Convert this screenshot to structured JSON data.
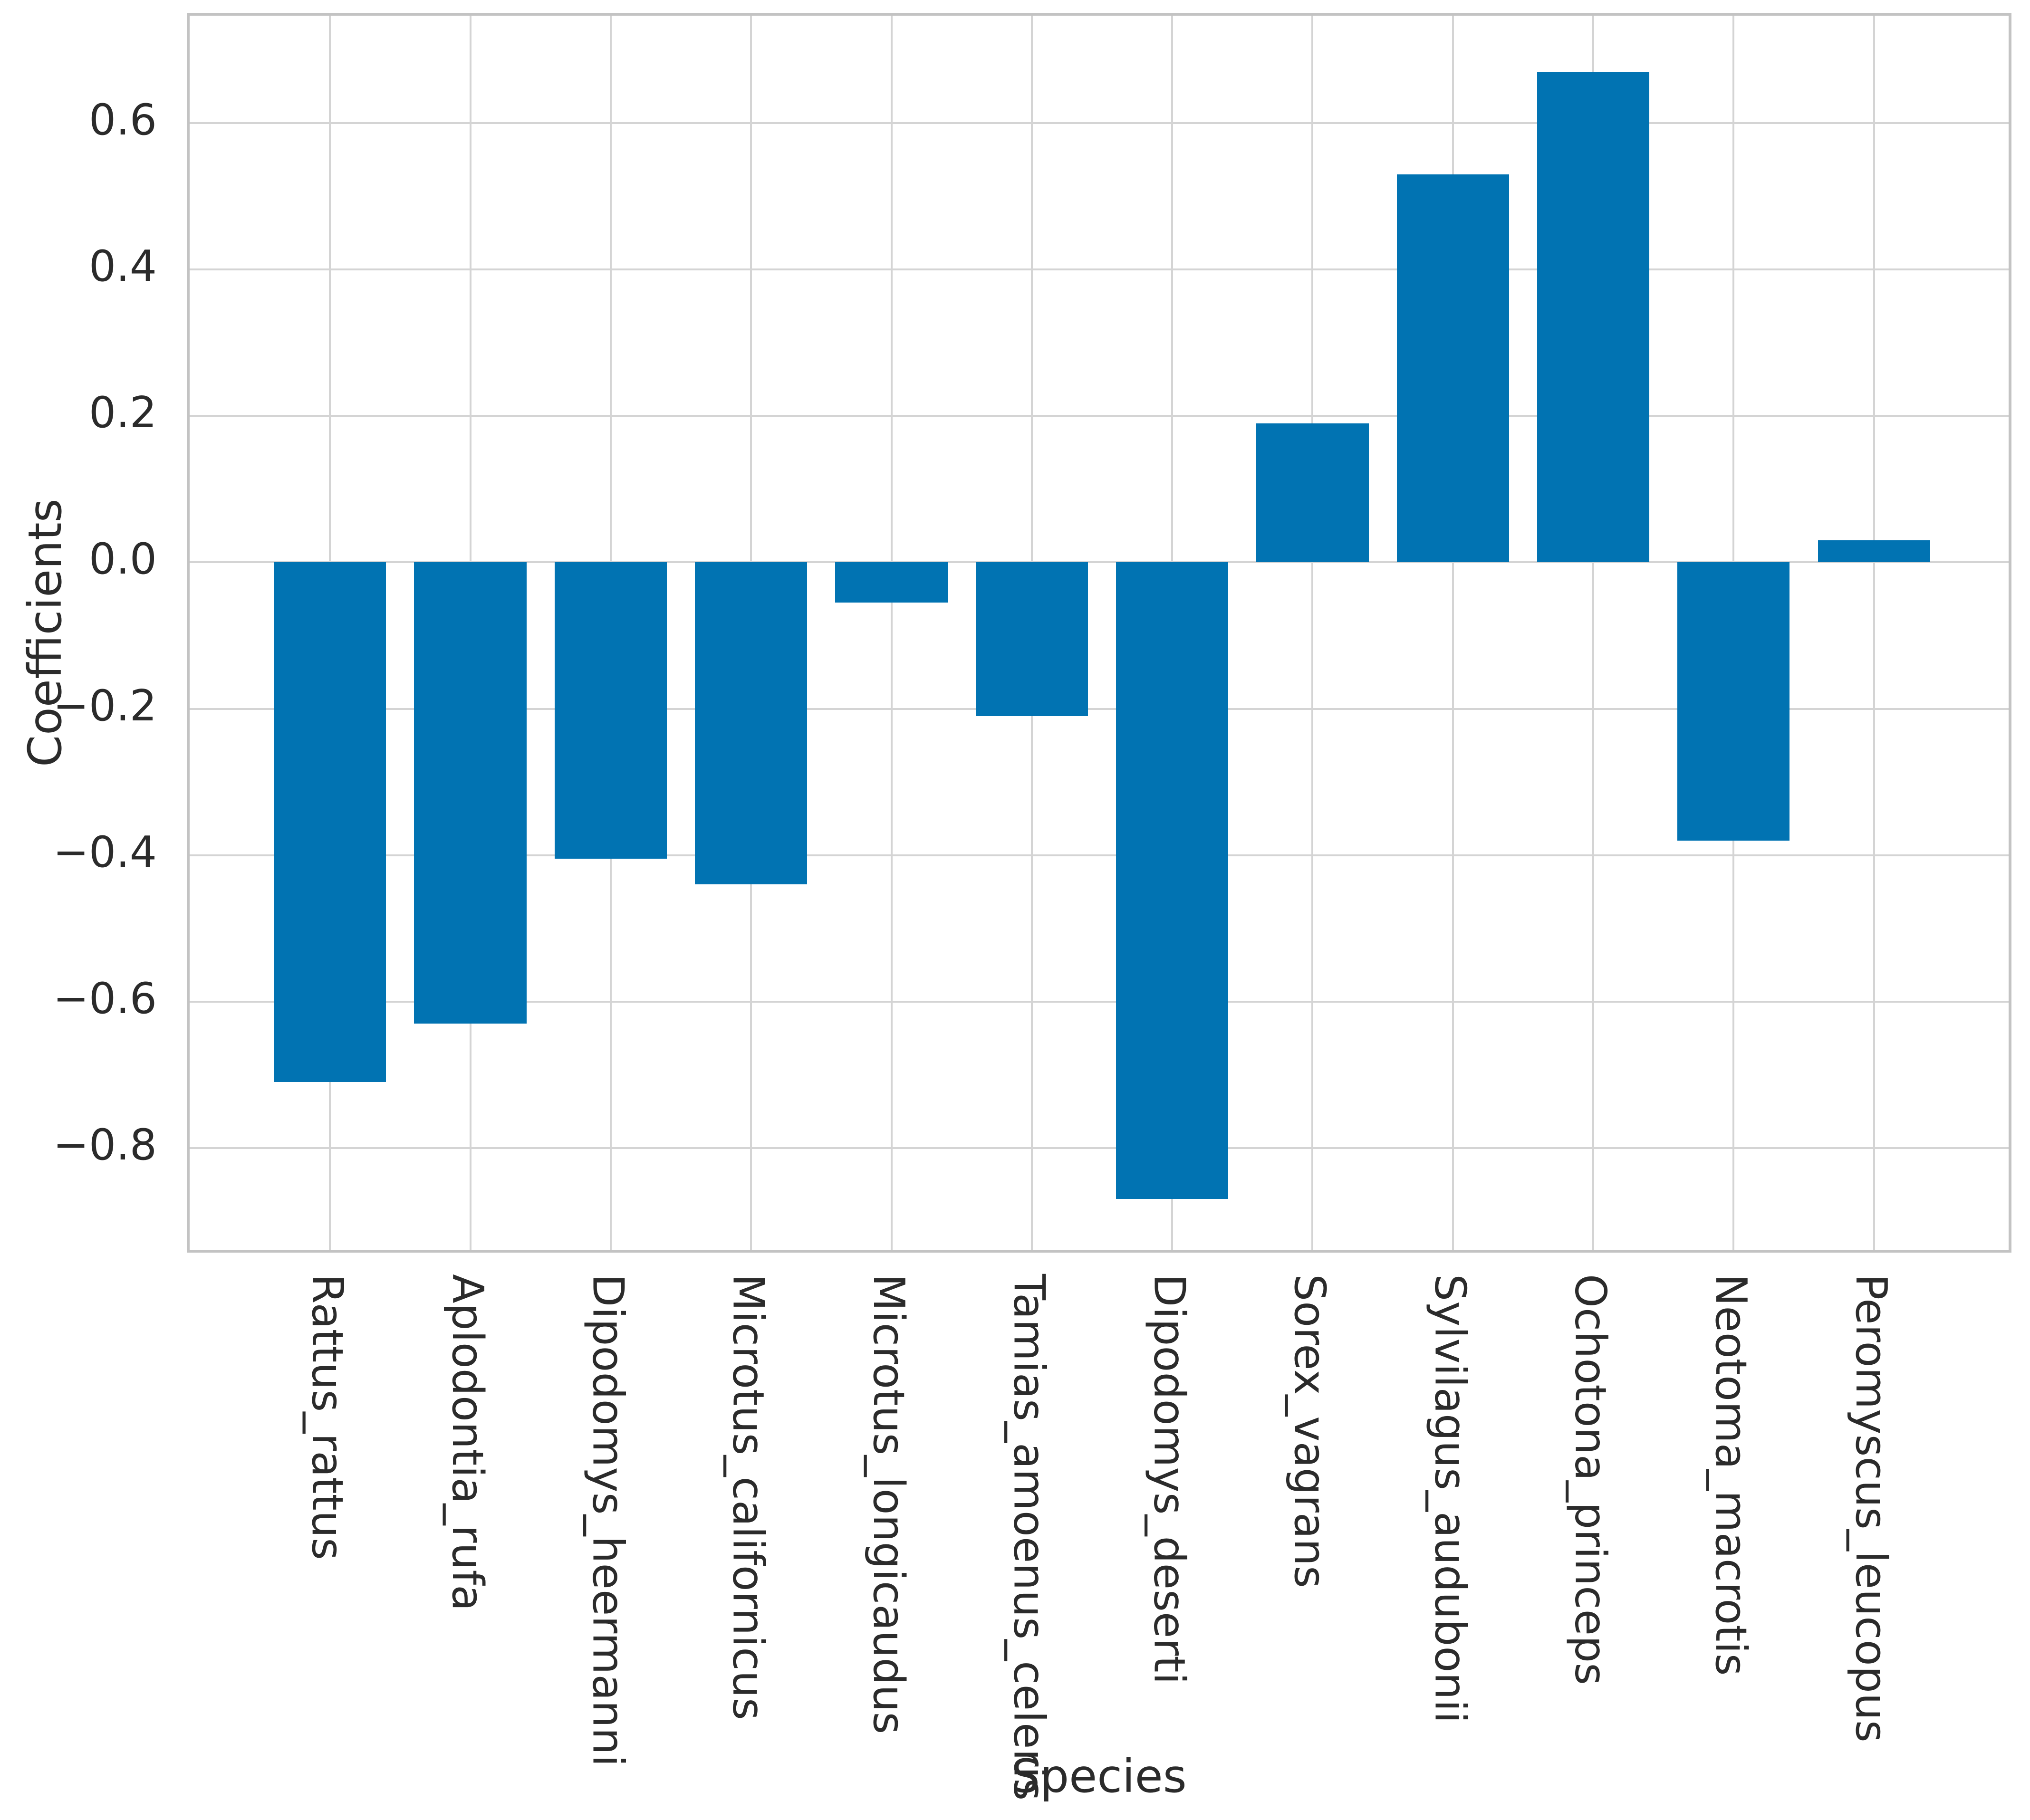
{
  "figure": {
    "background_color": "#ffffff",
    "text_color": "#2b2b2b"
  },
  "chart_data": {
    "type": "bar",
    "title": "",
    "xlabel": "Species",
    "ylabel": "Coefficients",
    "categories": [
      "Rattus_rattus",
      "Aplodontia_rufa",
      "Dipodomys_heermanni",
      "Microtus_californicus",
      "Microtus_longicaudus",
      "Tamias_amoenus_celeris",
      "Dipodomys_deserti",
      "Sorex_vagrans",
      "Sylvilagus_audubonii",
      "Ochotona_princeps",
      "Neotoma_macrotis",
      "Peromyscus_leucopus"
    ],
    "values": [
      -0.71,
      -0.63,
      -0.405,
      -0.44,
      -0.055,
      -0.21,
      -0.87,
      0.19,
      0.53,
      0.67,
      -0.38,
      0.03
    ],
    "ylim": [
      -0.947,
      0.747
    ],
    "yticks": [
      {
        "value": 0.6,
        "label": "0.6"
      },
      {
        "value": 0.4,
        "label": "0.4"
      },
      {
        "value": 0.2,
        "label": "0.2"
      },
      {
        "value": 0.0,
        "label": "0.0"
      },
      {
        "value": -0.2,
        "label": "−0.2"
      },
      {
        "value": -0.4,
        "label": "−0.4"
      },
      {
        "value": -0.6,
        "label": "−0.6"
      },
      {
        "value": -0.8,
        "label": "−0.8"
      }
    ],
    "grid": true,
    "legend": "none",
    "bar_color": "#0173b2",
    "grid_color": "#d4d4d4",
    "spine_color": "#c3c3c3",
    "bar_width_frac": 0.8
  }
}
